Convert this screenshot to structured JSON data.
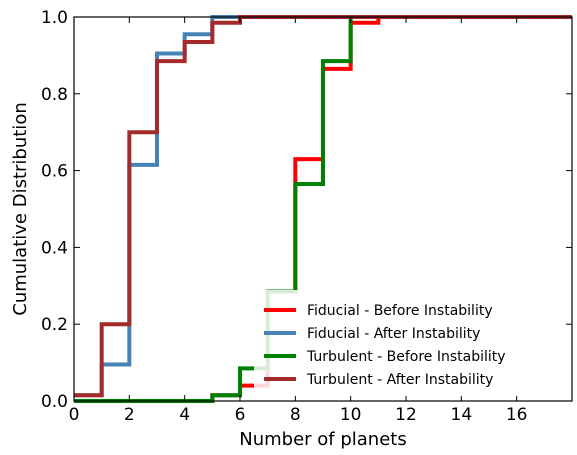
{
  "chart_data": {
    "type": "line",
    "drawstyle": "steps-post",
    "xlabel": "Number of planets",
    "ylabel": "Cumulative Distribution",
    "xlim": [
      0,
      18
    ],
    "ylim": [
      0,
      1.0
    ],
    "xticks": [
      0,
      2,
      4,
      6,
      8,
      10,
      12,
      14,
      16
    ],
    "yticks": [
      0.0,
      0.2,
      0.4,
      0.6,
      0.8,
      1.0
    ],
    "xtick_labels": [
      "0",
      "2",
      "4",
      "6",
      "8",
      "10",
      "12",
      "14",
      "16"
    ],
    "ytick_labels": [
      "0.0",
      "0.2",
      "0.4",
      "0.6",
      "0.8",
      "1.0"
    ],
    "grid": false,
    "legend_position": "lower-right",
    "x": [
      0,
      1,
      2,
      3,
      4,
      5,
      6,
      7,
      8,
      9,
      10,
      11,
      18
    ],
    "series": [
      {
        "name": "Fiducial - Before Instability",
        "color": "#ff0000",
        "values": [
          0.0,
          0.0,
          0.0,
          0.0,
          0.0,
          0.015,
          0.04,
          0.285,
          0.63,
          0.865,
          0.985,
          1.0,
          1.0
        ]
      },
      {
        "name": "Fiducial - After Instability",
        "color": "#4682b4",
        "values": [
          0.015,
          0.095,
          0.615,
          0.905,
          0.955,
          1.0,
          1.0,
          1.0,
          1.0,
          1.0,
          1.0,
          1.0,
          1.0
        ]
      },
      {
        "name": "Turbulent - Before Instability",
        "color": "#008000",
        "values": [
          0.0,
          0.0,
          0.0,
          0.0,
          0.0,
          0.015,
          0.085,
          0.285,
          0.565,
          0.885,
          1.0,
          1.0,
          1.0
        ]
      },
      {
        "name": "Turbulent - After Instability",
        "color": "#a52a2a",
        "values": [
          0.015,
          0.2,
          0.7,
          0.885,
          0.935,
          0.985,
          1.0,
          1.0,
          1.0,
          1.0,
          1.0,
          1.0,
          1.0
        ]
      }
    ]
  }
}
